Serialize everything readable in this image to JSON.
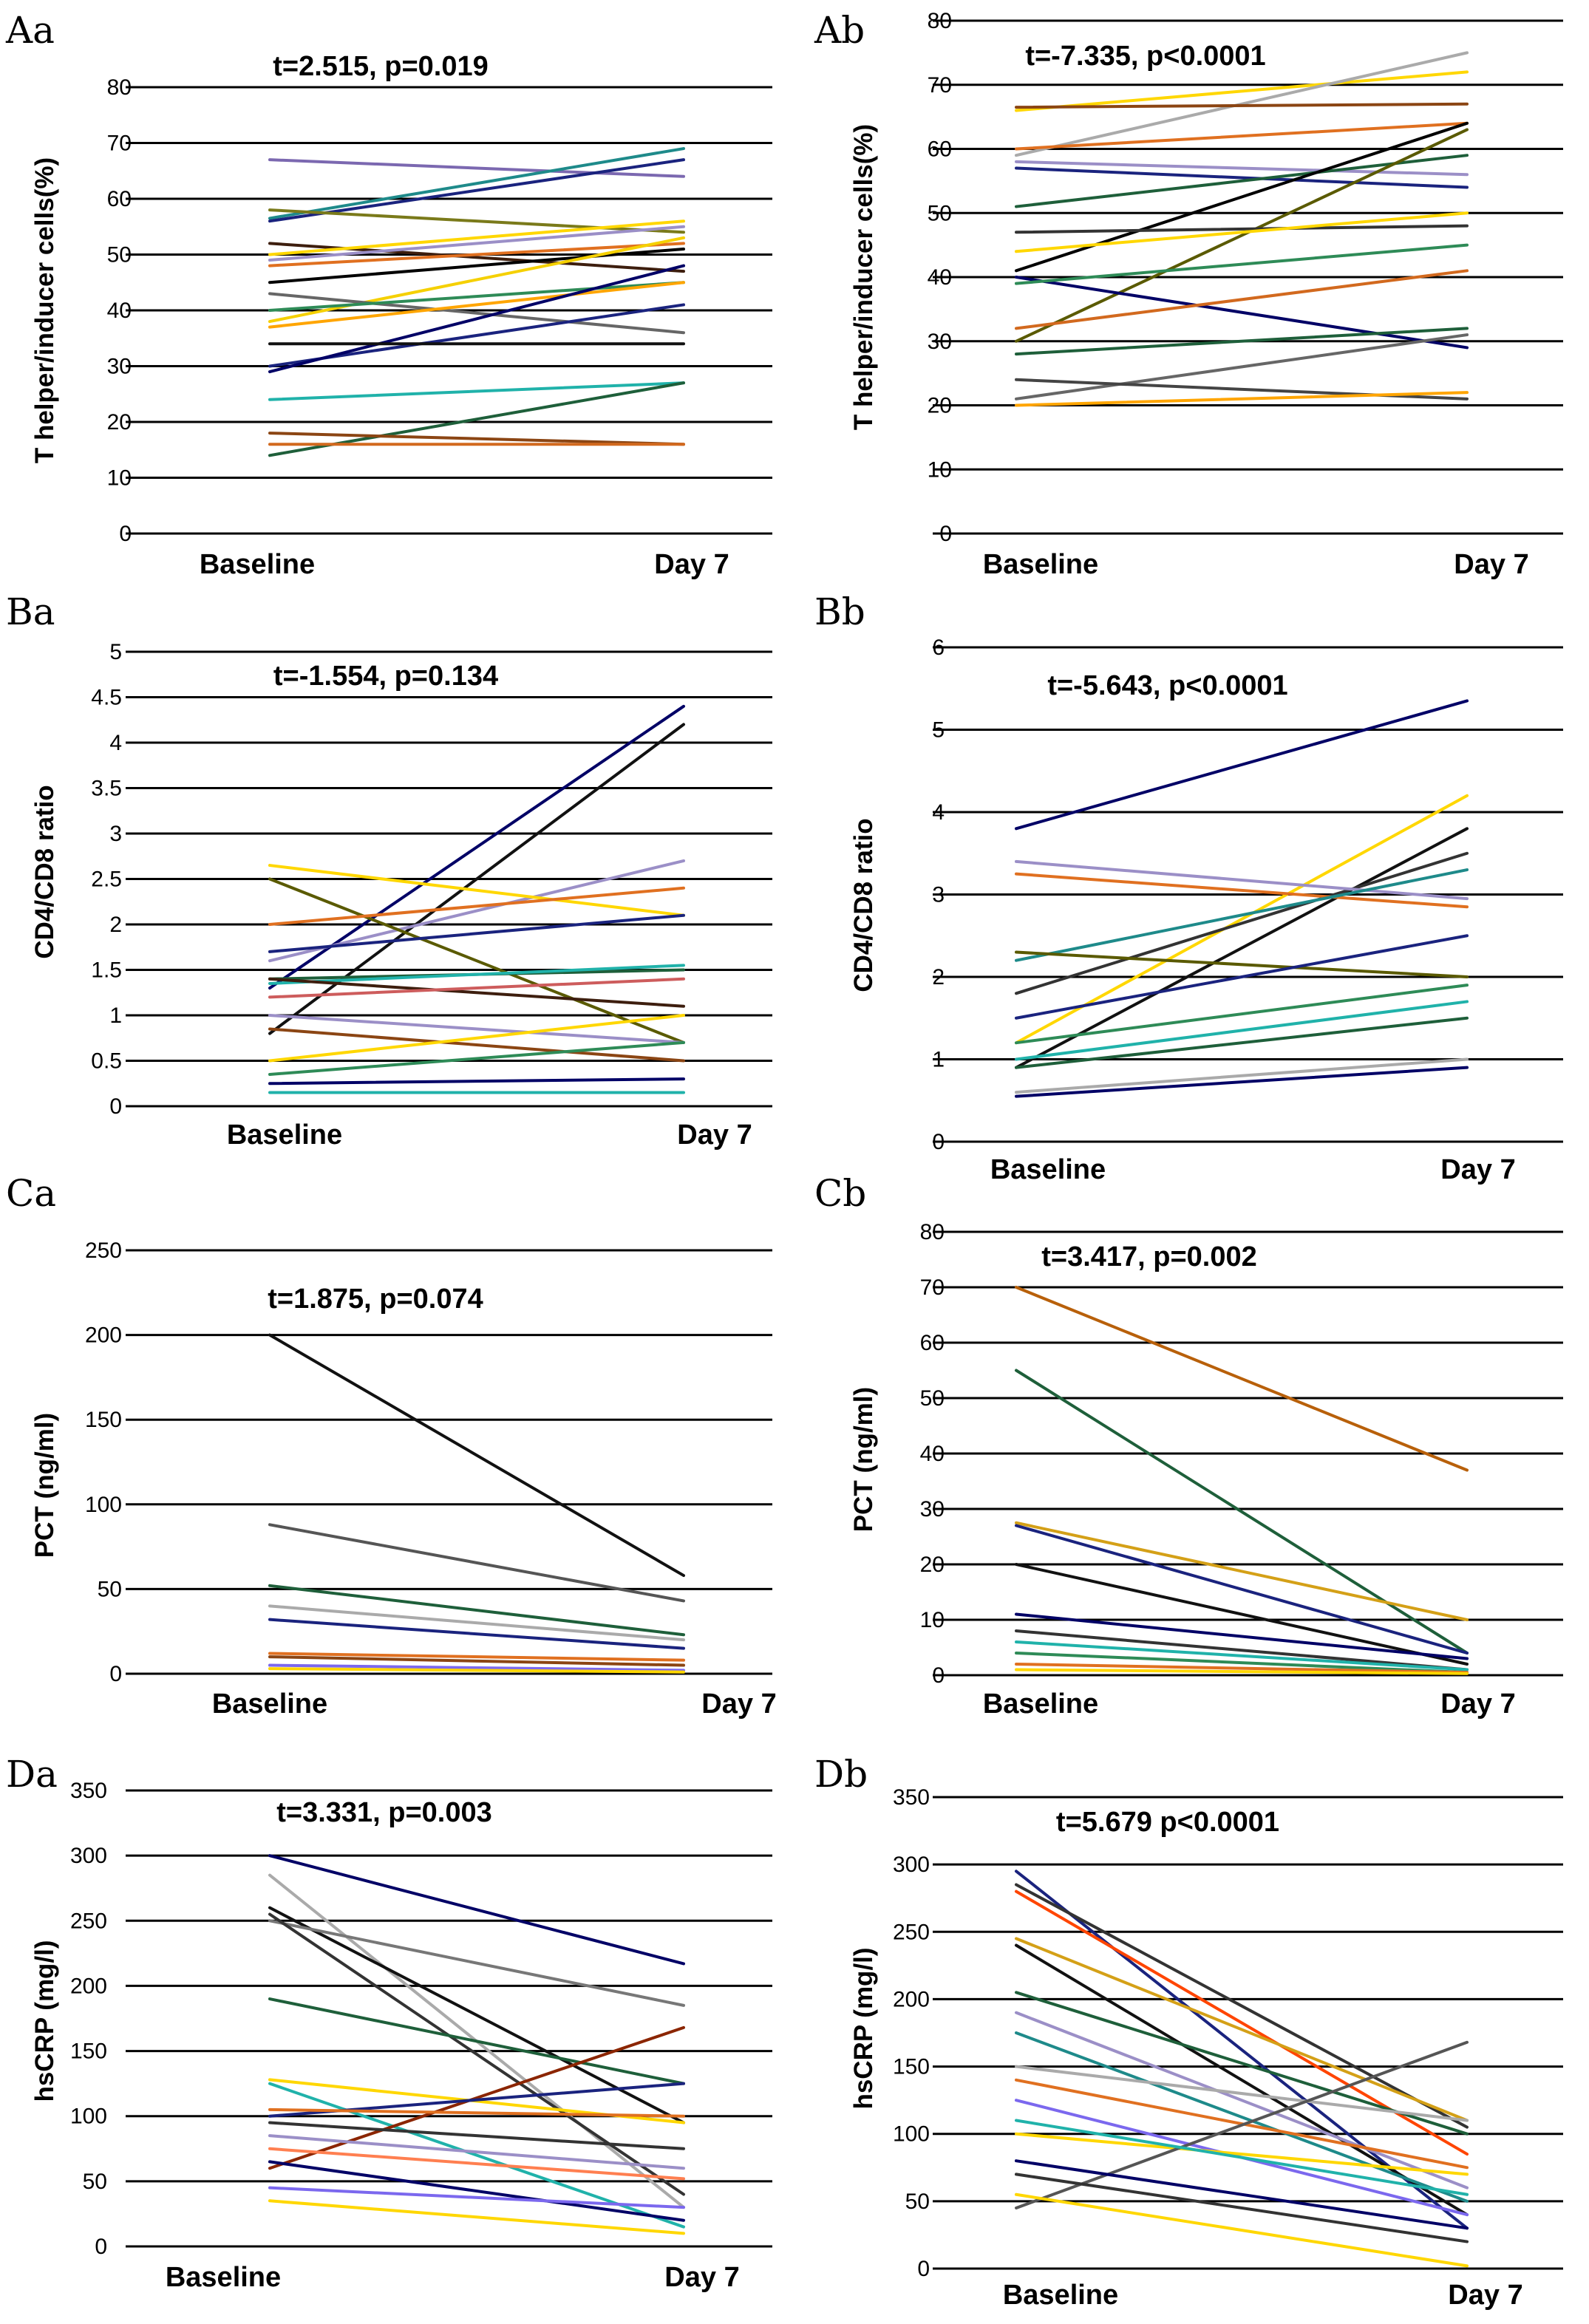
{
  "chart_data": [
    {
      "panel": "Aa",
      "type": "line",
      "title": "t=2.515, p=0.019",
      "categories": [
        "Baseline",
        "Day 7"
      ],
      "ylabel": "T helper/inducer cells(%)",
      "ylim": [
        0,
        80
      ],
      "yticks": [
        "0",
        "10",
        "20",
        "30",
        "40",
        "50",
        "60",
        "70",
        "80"
      ],
      "series": [
        {
          "color": "#7b68b0",
          "values": [
            67,
            64
          ]
        },
        {
          "color": "#1e8a8a",
          "values": [
            56.5,
            69
          ]
        },
        {
          "color": "#1a237e",
          "values": [
            56,
            67
          ]
        },
        {
          "color": "#7a7a1a",
          "values": [
            58,
            54
          ]
        },
        {
          "color": "#3d1e0e",
          "values": [
            52,
            47
          ]
        },
        {
          "color": "#ffd700",
          "values": [
            50,
            56
          ]
        },
        {
          "color": "#9b8fc7",
          "values": [
            49,
            55
          ]
        },
        {
          "color": "#e07020",
          "values": [
            48,
            52
          ]
        },
        {
          "color": "#000000",
          "values": [
            45,
            51
          ]
        },
        {
          "color": "#f5d000",
          "values": [
            38,
            53
          ]
        },
        {
          "color": "#666666",
          "values": [
            43,
            36
          ]
        },
        {
          "color": "#2e8b57",
          "values": [
            40,
            45
          ]
        },
        {
          "color": "#ffa500",
          "values": [
            37,
            45
          ]
        },
        {
          "color": "#1a237e",
          "values": [
            30,
            41
          ]
        },
        {
          "color": "#000066",
          "values": [
            29,
            48
          ]
        },
        {
          "color": "#111111",
          "values": [
            34,
            34
          ]
        },
        {
          "color": "#20b2aa",
          "values": [
            24,
            27
          ]
        },
        {
          "color": "#1e5f3a",
          "values": [
            14,
            27
          ]
        },
        {
          "color": "#8b4513",
          "values": [
            18,
            16
          ]
        },
        {
          "color": "#d2691e",
          "values": [
            16,
            16
          ]
        }
      ]
    },
    {
      "panel": "Ab",
      "type": "line",
      "title": "t=-7.335, p<0.0001",
      "categories": [
        "Baseline",
        "Day 7"
      ],
      "ylabel": "T helper/inducer cells(%)",
      "ylim": [
        0,
        80
      ],
      "yticks": [
        "0",
        "10",
        "20",
        "30",
        "40",
        "50",
        "60",
        "70",
        "80"
      ],
      "series": [
        {
          "color": "#ffd700",
          "values": [
            66,
            72
          ]
        },
        {
          "color": "#aaaaaa",
          "values": [
            59,
            75
          ]
        },
        {
          "color": "#8b4513",
          "values": [
            66.5,
            67
          ]
        },
        {
          "color": "#e07020",
          "values": [
            60,
            64
          ]
        },
        {
          "color": "#9b8fc7",
          "values": [
            58,
            56
          ]
        },
        {
          "color": "#1a237e",
          "values": [
            57,
            54
          ]
        },
        {
          "color": "#1e5f3a",
          "values": [
            51,
            59
          ]
        },
        {
          "color": "#000000",
          "values": [
            41,
            64
          ]
        },
        {
          "color": "#5a5a00",
          "values": [
            30,
            63
          ]
        },
        {
          "color": "#000066",
          "values": [
            40,
            29
          ]
        },
        {
          "color": "#333333",
          "values": [
            47,
            48
          ]
        },
        {
          "color": "#ffd700",
          "values": [
            44,
            50
          ]
        },
        {
          "color": "#2e8b57",
          "values": [
            39,
            45
          ]
        },
        {
          "color": "#d2691e",
          "values": [
            32,
            41
          ]
        },
        {
          "color": "#1e5f3a",
          "values": [
            28,
            32
          ]
        },
        {
          "color": "#666666",
          "values": [
            21,
            31
          ]
        },
        {
          "color": "#444444",
          "values": [
            24,
            21
          ]
        },
        {
          "color": "#ffa500",
          "values": [
            20,
            22
          ]
        }
      ]
    },
    {
      "panel": "Ba",
      "type": "line",
      "title": "t=-1.554, p=0.134",
      "categories": [
        "Baseline",
        "Day 7"
      ],
      "ylabel": "CD4/CD8 ratio",
      "ylim": [
        0,
        5
      ],
      "yticks": [
        "0",
        "0.5",
        "1",
        "1.5",
        "2",
        "2.5",
        "3",
        "3.5",
        "4",
        "4.5",
        "5"
      ],
      "series": [
        {
          "color": "#000066",
          "values": [
            1.3,
            4.4
          ]
        },
        {
          "color": "#111111",
          "values": [
            0.8,
            4.2
          ]
        },
        {
          "color": "#9b8fc7",
          "values": [
            1.6,
            2.7
          ]
        },
        {
          "color": "#ffd700",
          "values": [
            2.65,
            2.1
          ]
        },
        {
          "color": "#5a5a00",
          "values": [
            2.5,
            0.7
          ]
        },
        {
          "color": "#e07020",
          "values": [
            2.0,
            2.4
          ]
        },
        {
          "color": "#1a237e",
          "values": [
            1.7,
            2.1
          ]
        },
        {
          "color": "#1e5f3a",
          "values": [
            1.4,
            1.5
          ]
        },
        {
          "color": "#20b2aa",
          "values": [
            1.35,
            1.55
          ]
        },
        {
          "color": "#3d1e0e",
          "values": [
            1.4,
            1.1
          ]
        },
        {
          "color": "#cd5c5c",
          "values": [
            1.2,
            1.4
          ]
        },
        {
          "color": "#9b8fc7",
          "values": [
            1.0,
            0.7
          ]
        },
        {
          "color": "#8b4513",
          "values": [
            0.85,
            0.5
          ]
        },
        {
          "color": "#ffd700",
          "values": [
            0.5,
            1.0
          ]
        },
        {
          "color": "#2e8b57",
          "values": [
            0.35,
            0.7
          ]
        },
        {
          "color": "#000066",
          "values": [
            0.25,
            0.3
          ]
        },
        {
          "color": "#20b2aa",
          "values": [
            0.15,
            0.15
          ]
        }
      ]
    },
    {
      "panel": "Bb",
      "type": "line",
      "title": "t=-5.643, p<0.0001",
      "categories": [
        "Baseline",
        "Day 7"
      ],
      "ylabel": "CD4/CD8 ratio",
      "ylim": [
        0,
        6
      ],
      "yticks": [
        "0",
        "1",
        "2",
        "3",
        "4",
        "5",
        "6"
      ],
      "series": [
        {
          "color": "#000066",
          "values": [
            3.8,
            5.35
          ]
        },
        {
          "color": "#ffd700",
          "values": [
            1.2,
            4.2
          ]
        },
        {
          "color": "#111111",
          "values": [
            0.9,
            3.8
          ]
        },
        {
          "color": "#333333",
          "values": [
            1.8,
            3.5
          ]
        },
        {
          "color": "#9b8fc7",
          "values": [
            3.4,
            2.95
          ]
        },
        {
          "color": "#e07020",
          "values": [
            3.25,
            2.85
          ]
        },
        {
          "color": "#1e8a8a",
          "values": [
            2.2,
            3.3
          ]
        },
        {
          "color": "#5a5a00",
          "values": [
            2.3,
            2.0
          ]
        },
        {
          "color": "#1a237e",
          "values": [
            1.5,
            2.5
          ]
        },
        {
          "color": "#2e8b57",
          "values": [
            1.2,
            1.9
          ]
        },
        {
          "color": "#20b2aa",
          "values": [
            1.0,
            1.7
          ]
        },
        {
          "color": "#1e5f3a",
          "values": [
            0.9,
            1.5
          ]
        },
        {
          "color": "#000066",
          "values": [
            0.55,
            0.9
          ]
        },
        {
          "color": "#aaaaaa",
          "values": [
            0.6,
            1.0
          ]
        }
      ]
    },
    {
      "panel": "Ca",
      "type": "line",
      "title": "t=1.875, p=0.074",
      "categories": [
        "Baseline",
        "Day 7"
      ],
      "ylabel": "PCT (ng/ml)",
      "ylim": [
        0,
        250
      ],
      "yticks": [
        "0",
        "50",
        "100",
        "150",
        "200",
        "250"
      ],
      "series": [
        {
          "color": "#111111",
          "values": [
            200,
            58
          ]
        },
        {
          "color": "#555555",
          "values": [
            88,
            43
          ]
        },
        {
          "color": "#1e5f3a",
          "values": [
            52,
            23
          ]
        },
        {
          "color": "#aaaaaa",
          "values": [
            40,
            20
          ]
        },
        {
          "color": "#1a237e",
          "values": [
            32,
            15
          ]
        },
        {
          "color": "#e07020",
          "values": [
            12,
            8
          ]
        },
        {
          "color": "#8b4513",
          "values": [
            10,
            5
          ]
        },
        {
          "color": "#7b68ee",
          "values": [
            5,
            2
          ]
        },
        {
          "color": "#ffd700",
          "values": [
            3,
            1
          ]
        }
      ]
    },
    {
      "panel": "Cb",
      "type": "line",
      "title": "t=3.417, p=0.002",
      "categories": [
        "Baseline",
        "Day 7"
      ],
      "ylabel": "PCT (ng/ml)",
      "ylim": [
        0,
        80
      ],
      "yticks": [
        "0",
        "10",
        "20",
        "30",
        "40",
        "50",
        "60",
        "70",
        "80"
      ],
      "series": [
        {
          "color": "#b8600a",
          "values": [
            70,
            37
          ]
        },
        {
          "color": "#1e5f3a",
          "values": [
            55,
            4
          ]
        },
        {
          "color": "#d4a017",
          "values": [
            27.5,
            10
          ]
        },
        {
          "color": "#1a237e",
          "values": [
            27,
            4
          ]
        },
        {
          "color": "#111111",
          "values": [
            20,
            2
          ]
        },
        {
          "color": "#000066",
          "values": [
            11,
            3
          ]
        },
        {
          "color": "#333333",
          "values": [
            8,
            1
          ]
        },
        {
          "color": "#20b2aa",
          "values": [
            6,
            1
          ]
        },
        {
          "color": "#2e8b57",
          "values": [
            4,
            0.5
          ]
        },
        {
          "color": "#e07020",
          "values": [
            2,
            0.5
          ]
        },
        {
          "color": "#ffd700",
          "values": [
            1,
            0.3
          ]
        }
      ]
    },
    {
      "panel": "Da",
      "type": "line",
      "title": "t=3.331, p=0.003",
      "categories": [
        "Baseline",
        "Day 7"
      ],
      "ylabel": "hsCRP (mg/l)",
      "ylim": [
        0,
        350
      ],
      "yticks": [
        "0",
        "50",
        "100",
        "150",
        "200",
        "250",
        "300",
        "350"
      ],
      "series": [
        {
          "color": "#000066",
          "values": [
            300,
            217
          ]
        },
        {
          "color": "#aaaaaa",
          "values": [
            285,
            30
          ]
        },
        {
          "color": "#111111",
          "values": [
            260,
            95
          ]
        },
        {
          "color": "#777777",
          "values": [
            250,
            185
          ]
        },
        {
          "color": "#333333",
          "values": [
            255,
            40
          ]
        },
        {
          "color": "#1e5f3a",
          "values": [
            190,
            125
          ]
        },
        {
          "color": "#ffd700",
          "values": [
            128,
            95
          ]
        },
        {
          "color": "#20b2aa",
          "values": [
            125,
            15
          ]
        },
        {
          "color": "#8b2500",
          "values": [
            60,
            168
          ]
        },
        {
          "color": "#1a237e",
          "values": [
            100,
            125
          ]
        },
        {
          "color": "#e07020",
          "values": [
            105,
            100
          ]
        },
        {
          "color": "#333333",
          "values": [
            95,
            75
          ]
        },
        {
          "color": "#9b8fc7",
          "values": [
            85,
            60
          ]
        },
        {
          "color": "#ff7f50",
          "values": [
            75,
            52
          ]
        },
        {
          "color": "#000066",
          "values": [
            65,
            20
          ]
        },
        {
          "color": "#7b68ee",
          "values": [
            45,
            30
          ]
        },
        {
          "color": "#ffd700",
          "values": [
            35,
            10
          ]
        }
      ]
    },
    {
      "panel": "Db",
      "type": "line",
      "title": "t=5.679 p<0.0001",
      "categories": [
        "Baseline",
        "Day 7"
      ],
      "ylabel": "hsCRP (mg/l)",
      "ylim": [
        0,
        350
      ],
      "yticks": [
        "0",
        "50",
        "100",
        "150",
        "200",
        "250",
        "300",
        "350"
      ],
      "series": [
        {
          "color": "#1a237e",
          "values": [
            295,
            30
          ]
        },
        {
          "color": "#ff4500",
          "values": [
            280,
            85
          ]
        },
        {
          "color": "#333333",
          "values": [
            285,
            105
          ]
        },
        {
          "color": "#d4a017",
          "values": [
            245,
            110
          ]
        },
        {
          "color": "#111111",
          "values": [
            240,
            40
          ]
        },
        {
          "color": "#1e5f3a",
          "values": [
            205,
            100
          ]
        },
        {
          "color": "#9b8fc7",
          "values": [
            190,
            60
          ]
        },
        {
          "color": "#1e8a8a",
          "values": [
            175,
            50
          ]
        },
        {
          "color": "#aaaaaa",
          "values": [
            150,
            110
          ]
        },
        {
          "color": "#e07020",
          "values": [
            140,
            75
          ]
        },
        {
          "color": "#7b68ee",
          "values": [
            125,
            40
          ]
        },
        {
          "color": "#ffd700",
          "values": [
            100,
            70
          ]
        },
        {
          "color": "#555555",
          "values": [
            45,
            168
          ]
        },
        {
          "color": "#20b2aa",
          "values": [
            110,
            55
          ]
        },
        {
          "color": "#000066",
          "values": [
            80,
            30
          ]
        },
        {
          "color": "#333333",
          "values": [
            70,
            20
          ]
        },
        {
          "color": "#ffd700",
          "values": [
            55,
            2
          ]
        }
      ]
    }
  ]
}
